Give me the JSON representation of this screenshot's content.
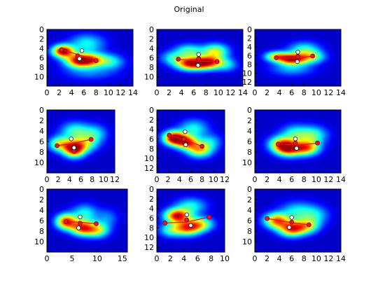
{
  "title": "Original",
  "colors": {
    "background": "#00007f",
    "skeleton": "#e8101a",
    "joint_red": "#dd1c1c",
    "joint_white": "#ffffff"
  },
  "chart_data": [
    {
      "type": "heatmap",
      "xlim": [
        0,
        14
      ],
      "ylim": [
        12,
        0
      ],
      "xticks": [
        0,
        2,
        4,
        6,
        8,
        10,
        12,
        14
      ],
      "yticks": [
        0,
        2,
        4,
        6,
        8,
        10
      ],
      "blobs": [
        {
          "x": 2.6,
          "y": 4.6,
          "sx": 1.2,
          "sy": 0.9,
          "a": 1.0
        },
        {
          "x": 5.2,
          "y": 6.6,
          "sx": 1.6,
          "sy": 1.0,
          "a": 0.85
        },
        {
          "x": 7.5,
          "y": 6.4,
          "sx": 1.6,
          "sy": 1.0,
          "a": 0.55
        },
        {
          "x": 6.5,
          "y": 3.0,
          "sx": 2.0,
          "sy": 1.4,
          "a": 0.35
        },
        {
          "x": 10.5,
          "y": 6.8,
          "sx": 1.5,
          "sy": 1.1,
          "a": 0.3
        },
        {
          "x": 7.0,
          "y": 9.0,
          "sx": 3.0,
          "sy": 1.2,
          "a": 0.2
        }
      ],
      "skeleton": [
        [
          2.4,
          4.3
        ],
        [
          5.5,
          5.5
        ],
        [
          8.0,
          6.6
        ]
      ],
      "red_joints": [
        [
          2.4,
          4.3
        ],
        [
          5.0,
          5.6
        ],
        [
          8.0,
          6.6
        ]
      ],
      "white_joints": [
        [
          5.7,
          4.5
        ],
        [
          5.3,
          6.2
        ]
      ]
    },
    {
      "type": "heatmap",
      "xlim": [
        0,
        14
      ],
      "ylim": [
        12,
        0
      ],
      "xticks": [
        0,
        2,
        4,
        6,
        8,
        10,
        12,
        14
      ],
      "yticks": [
        0,
        2,
        4,
        6,
        8,
        10
      ],
      "blobs": [
        {
          "x": 5.5,
          "y": 7.2,
          "sx": 1.7,
          "sy": 1.0,
          "a": 0.9
        },
        {
          "x": 8.5,
          "y": 7.0,
          "sx": 1.6,
          "sy": 1.0,
          "a": 0.8
        },
        {
          "x": 9.5,
          "y": 4.6,
          "sx": 1.5,
          "sy": 1.1,
          "a": 0.55
        },
        {
          "x": 5.2,
          "y": 4.5,
          "sx": 1.6,
          "sy": 1.0,
          "a": 0.4
        },
        {
          "x": 2.5,
          "y": 6.0,
          "sx": 1.4,
          "sy": 1.0,
          "a": 0.3
        },
        {
          "x": 11.5,
          "y": 7.5,
          "sx": 1.2,
          "sy": 1.0,
          "a": 0.25
        }
      ],
      "skeleton": [
        [
          3.5,
          6.3
        ],
        [
          6.8,
          6.7
        ],
        [
          9.8,
          6.8
        ]
      ],
      "red_joints": [
        [
          3.5,
          6.3
        ],
        [
          6.8,
          6.2
        ],
        [
          9.8,
          6.8
        ]
      ],
      "white_joints": [
        [
          6.8,
          5.3
        ],
        [
          6.7,
          7.6
        ]
      ]
    },
    {
      "type": "heatmap",
      "xlim": [
        0,
        14
      ],
      "ylim": [
        13,
        0
      ],
      "xticks": [
        0,
        2,
        4,
        6,
        8,
        10,
        12,
        14
      ],
      "yticks": [
        0,
        2,
        4,
        6,
        8,
        10,
        12
      ],
      "blobs": [
        {
          "x": 6.0,
          "y": 6.8,
          "sx": 1.5,
          "sy": 0.9,
          "a": 0.85
        },
        {
          "x": 3.5,
          "y": 6.2,
          "sx": 1.3,
          "sy": 0.8,
          "a": 0.6
        },
        {
          "x": 9.0,
          "y": 6.3,
          "sx": 1.6,
          "sy": 1.0,
          "a": 0.5
        },
        {
          "x": 8.0,
          "y": 4.5,
          "sx": 1.8,
          "sy": 1.2,
          "a": 0.35
        },
        {
          "x": 6.0,
          "y": 9.0,
          "sx": 2.5,
          "sy": 1.2,
          "a": 0.25
        }
      ],
      "skeleton": [
        [
          3.5,
          6.5
        ],
        [
          7.0,
          6.6
        ],
        [
          9.4,
          6.1
        ]
      ],
      "red_joints": [
        [
          3.5,
          6.5
        ],
        [
          7.0,
          6.2
        ],
        [
          9.4,
          6.1
        ]
      ],
      "white_joints": [
        [
          7.0,
          5.2
        ],
        [
          6.9,
          7.4
        ]
      ]
    },
    {
      "type": "heatmap",
      "xlim": [
        0,
        12
      ],
      "ylim": [
        12,
        0
      ],
      "xticks": [
        0,
        2,
        4,
        6,
        8,
        10,
        12
      ],
      "yticks": [
        0,
        2,
        4,
        6,
        8,
        10
      ],
      "blobs": [
        {
          "x": 4.8,
          "y": 7.4,
          "sx": 1.3,
          "sy": 1.1,
          "a": 1.0
        },
        {
          "x": 2.2,
          "y": 6.5,
          "sx": 1.3,
          "sy": 1.0,
          "a": 0.55
        },
        {
          "x": 7.0,
          "y": 6.4,
          "sx": 1.5,
          "sy": 1.1,
          "a": 0.4
        },
        {
          "x": 5.0,
          "y": 4.0,
          "sx": 1.8,
          "sy": 1.2,
          "a": 0.4
        },
        {
          "x": 8.5,
          "y": 4.5,
          "sx": 1.5,
          "sy": 1.2,
          "a": 0.3
        }
      ],
      "skeleton": [
        [
          1.8,
          6.8
        ],
        [
          4.5,
          6.4
        ],
        [
          7.8,
          5.6
        ]
      ],
      "red_joints": [
        [
          1.8,
          6.8
        ],
        [
          4.8,
          7.9
        ],
        [
          7.8,
          5.6
        ]
      ],
      "white_joints": [
        [
          4.3,
          5.5
        ],
        [
          4.8,
          7.2
        ]
      ]
    },
    {
      "type": "heatmap",
      "xlim": [
        0,
        12
      ],
      "ylim": [
        13,
        0
      ],
      "xticks": [
        0,
        2,
        4,
        6,
        8,
        10,
        12
      ],
      "yticks": [
        0,
        2,
        4,
        6,
        8,
        10,
        12
      ],
      "blobs": [
        {
          "x": 3.0,
          "y": 5.8,
          "sx": 1.3,
          "sy": 1.0,
          "a": 1.0
        },
        {
          "x": 5.2,
          "y": 6.6,
          "sx": 1.4,
          "sy": 1.0,
          "a": 0.75
        },
        {
          "x": 7.5,
          "y": 8.2,
          "sx": 1.6,
          "sy": 1.1,
          "a": 0.65
        },
        {
          "x": 6.5,
          "y": 3.8,
          "sx": 1.8,
          "sy": 1.3,
          "a": 0.35
        },
        {
          "x": 9.5,
          "y": 6.5,
          "sx": 1.4,
          "sy": 1.1,
          "a": 0.25
        }
      ],
      "skeleton": [
        [
          2.2,
          5.2
        ],
        [
          5.0,
          6.2
        ],
        [
          8.0,
          7.5
        ]
      ],
      "red_joints": [
        [
          2.2,
          5.2
        ],
        [
          4.8,
          6.0
        ],
        [
          8.0,
          7.5
        ]
      ],
      "white_joints": [
        [
          5.0,
          4.5
        ],
        [
          5.1,
          7.2
        ]
      ]
    },
    {
      "type": "heatmap",
      "xlim": [
        0,
        14
      ],
      "ylim": [
        12,
        0
      ],
      "xticks": [
        0,
        2,
        4,
        6,
        8,
        10,
        12,
        14
      ],
      "yticks": [
        0,
        2,
        4,
        6,
        8,
        10
      ],
      "blobs": [
        {
          "x": 5.5,
          "y": 7.4,
          "sx": 1.5,
          "sy": 1.0,
          "a": 0.85
        },
        {
          "x": 8.5,
          "y": 7.2,
          "sx": 1.4,
          "sy": 1.0,
          "a": 0.7
        },
        {
          "x": 4.2,
          "y": 6.4,
          "sx": 1.4,
          "sy": 1.0,
          "a": 0.55
        },
        {
          "x": 9.5,
          "y": 4.8,
          "sx": 1.6,
          "sy": 1.2,
          "a": 0.4
        },
        {
          "x": 6.5,
          "y": 4.5,
          "sx": 1.6,
          "sy": 1.2,
          "a": 0.35
        }
      ],
      "skeleton": [
        [
          3.8,
          6.5
        ],
        [
          7.0,
          6.7
        ],
        [
          10.2,
          6.3
        ]
      ],
      "red_joints": [
        [
          3.8,
          6.5
        ],
        [
          6.6,
          6.3
        ],
        [
          10.2,
          6.3
        ]
      ],
      "white_joints": [
        [
          6.6,
          5.5
        ],
        [
          6.8,
          7.3
        ]
      ]
    },
    {
      "type": "heatmap",
      "xlim": [
        0,
        16
      ],
      "ylim": [
        12,
        0
      ],
      "xticks": [
        0,
        5,
        10,
        15
      ],
      "yticks": [
        0,
        2,
        4,
        6,
        8,
        10
      ],
      "blobs": [
        {
          "x": 3.8,
          "y": 6.2,
          "sx": 1.4,
          "sy": 1.0,
          "a": 0.85
        },
        {
          "x": 7.0,
          "y": 7.4,
          "sx": 1.6,
          "sy": 1.0,
          "a": 0.8
        },
        {
          "x": 10.0,
          "y": 7.8,
          "sx": 1.6,
          "sy": 1.0,
          "a": 0.55
        },
        {
          "x": 7.5,
          "y": 4.6,
          "sx": 1.8,
          "sy": 1.2,
          "a": 0.35
        },
        {
          "x": 12.0,
          "y": 5.5,
          "sx": 1.5,
          "sy": 1.2,
          "a": 0.2
        }
      ],
      "skeleton": [
        [
          3.8,
          6.2
        ],
        [
          6.5,
          6.3
        ],
        [
          9.8,
          6.6
        ]
      ],
      "red_joints": [
        [
          3.8,
          6.2
        ],
        [
          6.6,
          6.5
        ],
        [
          9.8,
          6.6
        ]
      ],
      "white_joints": [
        [
          6.6,
          5.3
        ],
        [
          6.3,
          7.4
        ]
      ]
    },
    {
      "type": "heatmap",
      "xlim": [
        0,
        10
      ],
      "ylim": [
        13,
        0
      ],
      "xticks": [
        0,
        2,
        4,
        6,
        8,
        10
      ],
      "yticks": [
        0,
        2,
        4,
        6,
        8,
        10,
        12
      ],
      "blobs": [
        {
          "x": 3.0,
          "y": 5.5,
          "sx": 1.3,
          "sy": 1.0,
          "a": 0.9
        },
        {
          "x": 4.5,
          "y": 8.0,
          "sx": 1.4,
          "sy": 1.1,
          "a": 0.75
        },
        {
          "x": 6.5,
          "y": 7.2,
          "sx": 1.3,
          "sy": 1.0,
          "a": 0.5
        },
        {
          "x": 5.0,
          "y": 3.5,
          "sx": 1.6,
          "sy": 1.2,
          "a": 0.35
        },
        {
          "x": 2.0,
          "y": 8.5,
          "sx": 1.2,
          "sy": 1.0,
          "a": 0.35
        }
      ],
      "skeleton": [
        [
          1.2,
          7.0
        ],
        [
          4.3,
          6.8
        ],
        [
          7.7,
          5.8
        ]
      ],
      "red_joints": [
        [
          1.2,
          7.0
        ],
        [
          4.4,
          6.4
        ],
        [
          7.7,
          5.8
        ]
      ],
      "white_joints": [
        [
          4.4,
          5.3
        ],
        [
          5.0,
          7.5
        ]
      ]
    },
    {
      "type": "heatmap",
      "xlim": [
        0,
        14
      ],
      "ylim": [
        12,
        0
      ],
      "xticks": [
        0,
        2,
        4,
        6,
        8,
        10,
        12,
        14
      ],
      "yticks": [
        0,
        2,
        4,
        6,
        8,
        10
      ],
      "blobs": [
        {
          "x": 3.5,
          "y": 6.0,
          "sx": 1.4,
          "sy": 1.0,
          "a": 0.75
        },
        {
          "x": 6.0,
          "y": 7.6,
          "sx": 1.5,
          "sy": 1.0,
          "a": 0.8
        },
        {
          "x": 8.5,
          "y": 7.0,
          "sx": 1.4,
          "sy": 1.0,
          "a": 0.5
        },
        {
          "x": 7.0,
          "y": 4.3,
          "sx": 2.0,
          "sy": 1.3,
          "a": 0.35
        },
        {
          "x": 10.0,
          "y": 5.0,
          "sx": 1.5,
          "sy": 1.2,
          "a": 0.25
        }
      ],
      "skeleton": [
        [
          2.0,
          5.6
        ],
        [
          6.0,
          6.4
        ],
        [
          8.8,
          6.8
        ]
      ],
      "red_joints": [
        [
          2.0,
          5.6
        ],
        [
          6.0,
          6.3
        ],
        [
          8.8,
          6.8
        ]
      ],
      "white_joints": [
        [
          6.0,
          5.4
        ],
        [
          5.6,
          7.3
        ]
      ]
    }
  ]
}
